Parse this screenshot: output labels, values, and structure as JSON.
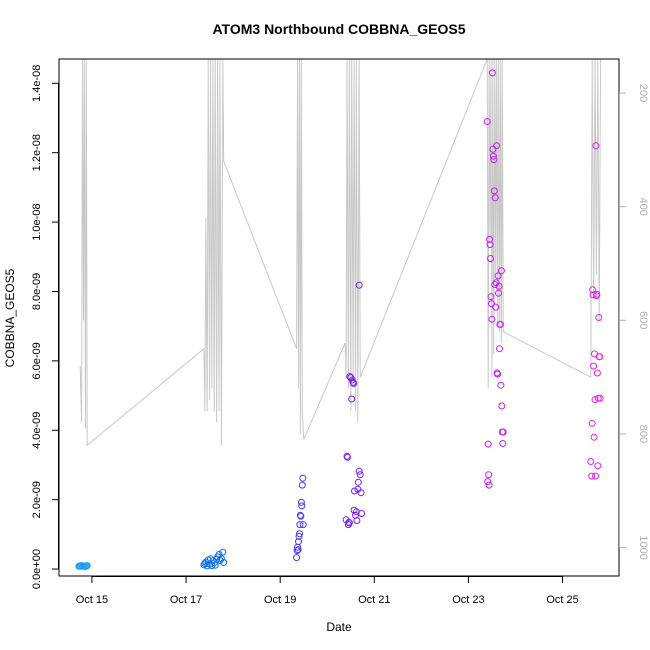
{
  "chart_data": {
    "type": "scatter",
    "title": "ATOM3 Northbound COBBNA_GEOS5",
    "xlabel": "Date",
    "ylabel": "COBBNA_GEOS5",
    "x_ticks": [
      "Oct 15",
      "Oct 17",
      "Oct 19",
      "Oct 21",
      "Oct 23",
      "Oct 25"
    ],
    "x_tick_days": [
      15,
      17,
      19,
      21,
      23,
      25
    ],
    "xlim": [
      14.3,
      26.2
    ],
    "ylim": [
      -2e-10,
      1.47e-08
    ],
    "y_ticks": [
      "0.0e+00",
      "2.0e-09",
      "4.0e-09",
      "6.0e-09",
      "8.0e-09",
      "1.0e-08",
      "1.2e-08",
      "1.4e-08"
    ],
    "y_tick_values": [
      0,
      2e-09,
      4e-09,
      6e-09,
      8e-09,
      1e-08,
      1.2e-08,
      1.4e-08
    ],
    "y2_ticks": [
      "200",
      "400",
      "600",
      "800",
      "1000"
    ],
    "y2_tick_values": [
      200,
      400,
      600,
      800,
      1000
    ],
    "y2lim": [
      1050,
      140
    ],
    "y2_color": "#b0b0b0",
    "secondary_series": {
      "name": "",
      "color": "#c8c8c8",
      "x": [
        14.75,
        14.78,
        14.8,
        14.82,
        14.84,
        14.86,
        14.88,
        14.9,
        17.38,
        17.4,
        17.42,
        17.45,
        17.47,
        17.5,
        17.52,
        17.55,
        17.57,
        17.6,
        17.62,
        17.65,
        17.67,
        17.7,
        17.72,
        17.75,
        17.78,
        17.8,
        19.35,
        19.37,
        19.39,
        19.41,
        19.43,
        19.45,
        19.47,
        19.5,
        20.38,
        20.4,
        20.42,
        20.45,
        20.47,
        20.5,
        20.52,
        20.55,
        20.57,
        20.6,
        20.62,
        20.65,
        20.68,
        20.7,
        23.4,
        23.42,
        23.44,
        23.46,
        23.48,
        23.5,
        23.52,
        23.54,
        23.56,
        23.58,
        23.6,
        23.62,
        23.64,
        23.66,
        23.68,
        23.7,
        23.72,
        23.74,
        25.6,
        25.63,
        25.66,
        25.69,
        25.72,
        25.75,
        25.78,
        25.81
      ],
      "y": [
        680,
        780,
        140,
        600,
        140,
        790,
        140,
        820,
        650,
        760,
        420,
        760,
        140,
        740,
        140,
        720,
        140,
        760,
        140,
        780,
        140,
        760,
        140,
        820,
        140,
        320,
        650,
        140,
        720,
        140,
        800,
        140,
        760,
        810,
        640,
        700,
        140,
        720,
        140,
        760,
        140,
        700,
        140,
        760,
        140,
        780,
        140,
        700,
        140,
        720,
        140,
        460,
        140,
        700,
        140,
        660,
        140,
        520,
        140,
        610,
        140,
        620,
        140,
        640,
        140,
        620,
        700,
        140,
        560,
        140,
        520,
        140,
        600,
        140
      ]
    },
    "series": [
      {
        "day": 14.8,
        "color": "#1f9cf2",
        "x": [
          14.72,
          14.74,
          14.76,
          14.78,
          14.8,
          14.82,
          14.84,
          14.86,
          14.88,
          14.9
        ],
        "y": [
          8e-11,
          9e-11,
          8e-11,
          1e-10,
          8e-11,
          9e-11,
          8e-11,
          7e-11,
          9e-11,
          1e-10
        ]
      },
      {
        "day": 17.6,
        "color": "#0f6ef2",
        "x": [
          17.38,
          17.4,
          17.42,
          17.45,
          17.47,
          17.5,
          17.52,
          17.55,
          17.57,
          17.6,
          17.62,
          17.65,
          17.67,
          17.7,
          17.72,
          17.75,
          17.78,
          17.8
        ],
        "y": [
          1.2e-10,
          1.6e-10,
          2e-10,
          9e-11,
          2.6e-10,
          1.4e-10,
          3e-10,
          1e-10,
          2.4e-10,
          1.8e-10,
          1.1e-10,
          2.8e-10,
          3.5e-10,
          4.2e-10,
          2.5e-10,
          3e-10,
          4.9e-10,
          1.9e-10
        ]
      },
      {
        "day": 19.45,
        "color": "#4a3af2",
        "x": [
          19.35,
          19.36,
          19.37,
          19.38,
          19.39,
          19.4,
          19.41,
          19.42,
          19.43,
          19.44,
          19.45,
          19.46,
          19.47,
          19.48,
          19.49
        ],
        "y": [
          3.3e-10,
          5.3e-10,
          6.3e-10,
          5.6e-10,
          7.9e-10,
          9.4e-10,
          1.02e-09,
          1.28e-09,
          1.55e-09,
          1.52e-09,
          1.92e-09,
          1.82e-09,
          2.42e-09,
          2.62e-09,
          1.28e-09
        ]
      },
      {
        "day": 20.5,
        "color": "#7a1ff2",
        "x": [
          20.4,
          20.42,
          20.43,
          20.45,
          20.46,
          20.47,
          20.48,
          20.5,
          20.52,
          20.53,
          20.55,
          20.56,
          20.57,
          20.58,
          20.6,
          20.62,
          20.63,
          20.65,
          20.66,
          20.68,
          20.7,
          20.72,
          20.73,
          20.68
        ],
        "y": [
          1.42e-09,
          3.25e-09,
          3.22e-09,
          1.28e-09,
          1.35e-09,
          1.33e-09,
          5.55e-09,
          5.52e-09,
          4.9e-09,
          5.45e-09,
          5.38e-09,
          5.35e-09,
          1.7e-09,
          2.25e-09,
          1.55e-09,
          1.65e-09,
          1.4e-09,
          2.3e-09,
          2.5e-09,
          2.82e-09,
          2.72e-09,
          2.2e-09,
          1.6e-09,
          8.18e-09
        ]
      },
      {
        "day": 23.55,
        "color": "#c41ff2",
        "x": [
          23.4,
          23.41,
          23.42,
          23.43,
          23.44,
          23.45,
          23.46,
          23.47,
          23.48,
          23.49,
          23.5,
          23.51,
          23.52,
          23.53,
          23.54,
          23.55,
          23.56,
          23.57,
          23.58,
          23.59,
          23.6,
          23.61,
          23.62,
          23.63,
          23.64,
          23.65,
          23.66,
          23.67,
          23.68,
          23.69,
          23.7,
          23.71,
          23.72,
          23.73,
          23.74
        ],
        "y": [
          1.29e-08,
          2.52e-09,
          3.6e-09,
          2.72e-09,
          2.42e-09,
          9.5e-09,
          9.35e-09,
          8.95e-09,
          7.85e-09,
          7.65e-09,
          7.2e-09,
          1.43e-08,
          1.21e-08,
          1.19e-08,
          1.18e-08,
          1.09e-08,
          8.2e-09,
          1.07e-08,
          7.55e-09,
          8.25e-09,
          1.22e-08,
          5.65e-09,
          5.62e-09,
          8.45e-09,
          7.95e-09,
          8.15e-09,
          6.35e-09,
          7.05e-09,
          7.05e-09,
          5.3e-09,
          8.6e-09,
          4.7e-09,
          3.95e-09,
          3.62e-09,
          3.95e-09
        ]
      },
      {
        "day": 25.7,
        "color": "#e81fe6",
        "x": [
          25.6,
          25.62,
          25.63,
          25.64,
          25.65,
          25.66,
          25.67,
          25.68,
          25.69,
          25.7,
          25.71,
          25.72,
          25.73,
          25.74,
          25.75,
          25.76,
          25.77,
          25.78,
          25.79,
          25.8
        ],
        "y": [
          3.1e-09,
          2.68e-09,
          4.2e-09,
          8.05e-09,
          7.9e-09,
          5.85e-09,
          3.8e-09,
          6.2e-09,
          4.88e-09,
          2.68e-09,
          1.22e-08,
          7.88e-09,
          7.92e-09,
          5.65e-09,
          2.98e-09,
          4.92e-09,
          7.25e-09,
          6.12e-09,
          6.12e-09,
          4.92e-09
        ]
      }
    ]
  }
}
